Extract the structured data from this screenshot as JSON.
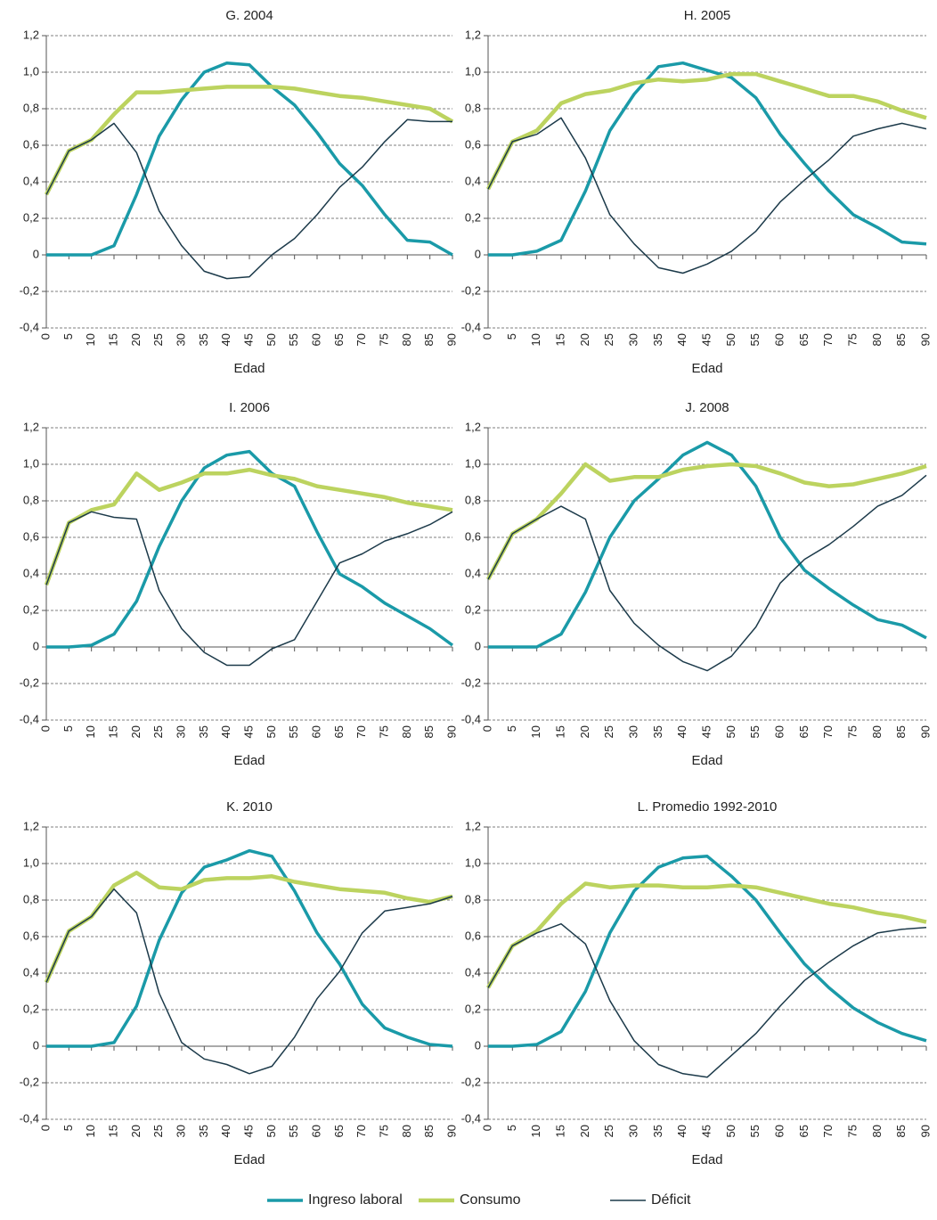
{
  "chart_data": [
    {
      "type": "line",
      "title": "G. 2004",
      "x_label": "Edad",
      "x": [
        0,
        5,
        10,
        15,
        20,
        25,
        30,
        35,
        40,
        45,
        50,
        55,
        60,
        65,
        70,
        75,
        80,
        85,
        90
      ],
      "xlim": [
        0,
        90
      ],
      "xticks": [
        0,
        5,
        10,
        15,
        20,
        25,
        30,
        35,
        40,
        45,
        50,
        55,
        60,
        65,
        70,
        75,
        80,
        85,
        90
      ],
      "ylim": [
        -0.4,
        1.2
      ],
      "yticks": [
        {
          "value": -0.4,
          "label": "-0,4"
        },
        {
          "value": -0.2,
          "label": "-0,2"
        },
        0,
        {
          "value": 0.2,
          "label": "0,2"
        },
        {
          "value": 0.4,
          "label": "0,4"
        },
        {
          "value": 0.6,
          "label": "0,6"
        },
        {
          "value": 0.8,
          "label": "0,8"
        },
        {
          "value": 1.0,
          "label": "1,0"
        },
        {
          "value": 1.2,
          "label": "1,2"
        }
      ],
      "grid": true,
      "series": [
        {
          "name": "Ingreso laboral",
          "color": "#1a9aa8",
          "values": [
            0,
            0,
            0,
            0.05,
            0.33,
            0.65,
            0.85,
            1.0,
            1.05,
            1.04,
            0.92,
            0.82,
            0.67,
            0.5,
            0.38,
            0.22,
            0.08,
            0.07,
            0
          ]
        },
        {
          "name": "Consumo",
          "color": "#bcd35f",
          "values": [
            0.33,
            0.57,
            0.63,
            0.77,
            0.89,
            0.89,
            0.9,
            0.91,
            0.92,
            0.92,
            0.92,
            0.91,
            0.89,
            0.87,
            0.86,
            0.84,
            0.82,
            0.8,
            0.73
          ]
        },
        {
          "name": "Déficit",
          "color": "#1c3a4a",
          "values": [
            0.33,
            0.57,
            0.63,
            0.72,
            0.56,
            0.24,
            0.05,
            -0.09,
            -0.13,
            -0.12,
            0,
            0.09,
            0.22,
            0.37,
            0.48,
            0.62,
            0.74,
            0.73,
            0.73
          ]
        }
      ]
    },
    {
      "type": "line",
      "title": "H. 2005",
      "x_label": "Edad",
      "x": [
        0,
        5,
        10,
        15,
        20,
        25,
        30,
        35,
        40,
        45,
        50,
        55,
        60,
        65,
        70,
        75,
        80,
        85,
        90
      ],
      "xlim": [
        0,
        90
      ],
      "xticks": [
        0,
        5,
        10,
        15,
        20,
        25,
        30,
        35,
        40,
        45,
        50,
        55,
        60,
        65,
        70,
        75,
        80,
        85,
        90
      ],
      "ylim": [
        -0.4,
        1.2
      ],
      "yticks": [
        {
          "value": -0.4,
          "label": "-0,4"
        },
        {
          "value": -0.2,
          "label": "-0,2"
        },
        0,
        {
          "value": 0.2,
          "label": "0,2"
        },
        {
          "value": 0.4,
          "label": "0,4"
        },
        {
          "value": 0.6,
          "label": "0,6"
        },
        {
          "value": 0.8,
          "label": "0,8"
        },
        {
          "value": 1.0,
          "label": "1,0"
        },
        {
          "value": 1.2,
          "label": "1,2"
        }
      ],
      "grid": true,
      "series": [
        {
          "color": "#1a9aa8",
          "values": [
            0,
            0,
            0.02,
            0.08,
            0.35,
            0.68,
            0.88,
            1.03,
            1.05,
            1.01,
            0.97,
            0.86,
            0.66,
            0.5,
            0.35,
            0.22,
            0.15,
            0.07,
            0.06
          ]
        },
        {
          "color": "#bcd35f",
          "values": [
            0.36,
            0.62,
            0.68,
            0.83,
            0.88,
            0.9,
            0.94,
            0.96,
            0.95,
            0.96,
            0.99,
            0.99,
            0.95,
            0.91,
            0.87,
            0.87,
            0.84,
            0.79,
            0.75
          ]
        },
        {
          "color": "#1c3a4a",
          "values": [
            0.36,
            0.62,
            0.66,
            0.75,
            0.53,
            0.22,
            0.06,
            -0.07,
            -0.1,
            -0.05,
            0.02,
            0.13,
            0.29,
            0.41,
            0.52,
            0.65,
            0.69,
            0.72,
            0.69
          ]
        }
      ]
    },
    {
      "type": "line",
      "title": "I. 2006",
      "x_label": "Edad",
      "x": [
        0,
        5,
        10,
        15,
        20,
        25,
        30,
        35,
        40,
        45,
        50,
        55,
        60,
        65,
        70,
        75,
        80,
        85,
        90
      ],
      "xlim": [
        0,
        90
      ],
      "xticks": [
        0,
        5,
        10,
        15,
        20,
        25,
        30,
        35,
        40,
        45,
        50,
        55,
        60,
        65,
        70,
        75,
        80,
        85,
        90
      ],
      "ylim": [
        -0.4,
        1.2
      ],
      "yticks": [
        {
          "value": -0.4,
          "label": "-0,4"
        },
        {
          "value": -0.2,
          "label": "-0,2"
        },
        0,
        {
          "value": 0.2,
          "label": "0,2"
        },
        {
          "value": 0.4,
          "label": "0,4"
        },
        {
          "value": 0.6,
          "label": "0,6"
        },
        {
          "value": 0.8,
          "label": "0,8"
        },
        {
          "value": 1.0,
          "label": "1,0"
        },
        {
          "value": 1.2,
          "label": "1,2"
        }
      ],
      "grid": true,
      "series": [
        {
          "color": "#1a9aa8",
          "values": [
            0,
            0,
            0.01,
            0.07,
            0.25,
            0.55,
            0.8,
            0.98,
            1.05,
            1.07,
            0.95,
            0.88,
            0.63,
            0.4,
            0.33,
            0.24,
            0.17,
            0.1,
            0.01
          ]
        },
        {
          "color": "#bcd35f",
          "values": [
            0.34,
            0.68,
            0.75,
            0.78,
            0.95,
            0.86,
            0.9,
            0.95,
            0.95,
            0.97,
            0.94,
            0.92,
            0.88,
            0.86,
            0.84,
            0.82,
            0.79,
            0.77,
            0.75
          ]
        },
        {
          "color": "#1c3a4a",
          "values": [
            0.34,
            0.68,
            0.74,
            0.71,
            0.7,
            0.31,
            0.1,
            -0.03,
            -0.1,
            -0.1,
            -0.01,
            0.04,
            0.25,
            0.46,
            0.51,
            0.58,
            0.62,
            0.67,
            0.74
          ]
        }
      ]
    },
    {
      "type": "line",
      "title": "J. 2008",
      "x_label": "Edad",
      "x": [
        0,
        5,
        10,
        15,
        20,
        25,
        30,
        35,
        40,
        45,
        50,
        55,
        60,
        65,
        70,
        75,
        80,
        85,
        90
      ],
      "xlim": [
        0,
        90
      ],
      "xticks": [
        0,
        5,
        10,
        15,
        20,
        25,
        30,
        35,
        40,
        45,
        50,
        55,
        60,
        65,
        70,
        75,
        80,
        85,
        90
      ],
      "ylim": [
        -0.4,
        1.2
      ],
      "yticks": [
        {
          "value": -0.4,
          "label": "-0,4"
        },
        {
          "value": -0.2,
          "label": "-0,2"
        },
        0,
        {
          "value": 0.2,
          "label": "0,2"
        },
        {
          "value": 0.4,
          "label": "0,4"
        },
        {
          "value": 0.6,
          "label": "0,6"
        },
        {
          "value": 0.8,
          "label": "0,8"
        },
        {
          "value": 1.0,
          "label": "1,0"
        },
        {
          "value": 1.2,
          "label": "1,2"
        }
      ],
      "grid": true,
      "series": [
        {
          "color": "#1a9aa8",
          "values": [
            0,
            0,
            0,
            0.07,
            0.3,
            0.6,
            0.8,
            0.92,
            1.05,
            1.12,
            1.05,
            0.88,
            0.6,
            0.42,
            0.32,
            0.23,
            0.15,
            0.12,
            0.05
          ]
        },
        {
          "color": "#bcd35f",
          "values": [
            0.37,
            0.62,
            0.7,
            0.84,
            1.0,
            0.91,
            0.93,
            0.93,
            0.97,
            0.99,
            1.0,
            0.99,
            0.95,
            0.9,
            0.88,
            0.89,
            0.92,
            0.95,
            0.99
          ]
        },
        {
          "color": "#1c3a4a",
          "values": [
            0.37,
            0.62,
            0.7,
            0.77,
            0.7,
            0.31,
            0.13,
            0.01,
            -0.08,
            -0.13,
            -0.05,
            0.11,
            0.35,
            0.48,
            0.56,
            0.66,
            0.77,
            0.83,
            0.94
          ]
        }
      ]
    },
    {
      "type": "line",
      "title": "K. 2010",
      "x_label": "Edad",
      "x": [
        0,
        5,
        10,
        15,
        20,
        25,
        30,
        35,
        40,
        45,
        50,
        55,
        60,
        65,
        70,
        75,
        80,
        85,
        90
      ],
      "xlim": [
        0,
        90
      ],
      "xticks": [
        0,
        5,
        10,
        15,
        20,
        25,
        30,
        35,
        40,
        45,
        50,
        55,
        60,
        65,
        70,
        75,
        80,
        85,
        90
      ],
      "ylim": [
        -0.4,
        1.2
      ],
      "yticks": [
        {
          "value": -0.4,
          "label": "-0,4"
        },
        {
          "value": -0.2,
          "label": "-0,2"
        },
        0,
        {
          "value": 0.2,
          "label": "0,2"
        },
        {
          "value": 0.4,
          "label": "0,4"
        },
        {
          "value": 0.6,
          "label": "0,6"
        },
        {
          "value": 0.8,
          "label": "0,8"
        },
        {
          "value": 1.0,
          "label": "1,0"
        },
        {
          "value": 1.2,
          "label": "1,2"
        }
      ],
      "grid": true,
      "series": [
        {
          "color": "#1a9aa8",
          "values": [
            0,
            0,
            0,
            0.02,
            0.22,
            0.58,
            0.84,
            0.98,
            1.02,
            1.07,
            1.04,
            0.85,
            0.62,
            0.45,
            0.23,
            0.1,
            0.05,
            0.01,
            0
          ]
        },
        {
          "color": "#bcd35f",
          "values": [
            0.35,
            0.63,
            0.71,
            0.88,
            0.95,
            0.87,
            0.86,
            0.91,
            0.92,
            0.92,
            0.93,
            0.9,
            0.88,
            0.86,
            0.85,
            0.84,
            0.81,
            0.79,
            0.82
          ]
        },
        {
          "color": "#1c3a4a",
          "values": [
            0.35,
            0.63,
            0.71,
            0.86,
            0.73,
            0.29,
            0.02,
            -0.07,
            -0.1,
            -0.15,
            -0.11,
            0.05,
            0.26,
            0.41,
            0.62,
            0.74,
            0.76,
            0.78,
            0.82
          ]
        }
      ]
    },
    {
      "type": "line",
      "title": "L. Promedio 1992-2010",
      "x_label": "Edad",
      "x": [
        0,
        5,
        10,
        15,
        20,
        25,
        30,
        35,
        40,
        45,
        50,
        55,
        60,
        65,
        70,
        75,
        80,
        85,
        90
      ],
      "xlim": [
        0,
        90
      ],
      "xticks": [
        0,
        5,
        10,
        15,
        20,
        25,
        30,
        35,
        40,
        45,
        50,
        55,
        60,
        65,
        70,
        75,
        80,
        85,
        90
      ],
      "ylim": [
        -0.4,
        1.2
      ],
      "yticks": [
        {
          "value": -0.4,
          "label": "-0,4"
        },
        {
          "value": -0.2,
          "label": "-0,2"
        },
        0,
        {
          "value": 0.2,
          "label": "0,2"
        },
        {
          "value": 0.4,
          "label": "0,4"
        },
        {
          "value": 0.6,
          "label": "0,6"
        },
        {
          "value": 0.8,
          "label": "0,8"
        },
        {
          "value": 1.0,
          "label": "1,0"
        },
        {
          "value": 1.2,
          "label": "1,2"
        }
      ],
      "grid": true,
      "series": [
        {
          "color": "#1a9aa8",
          "values": [
            0,
            0,
            0.01,
            0.08,
            0.3,
            0.62,
            0.85,
            0.98,
            1.03,
            1.04,
            0.93,
            0.8,
            0.62,
            0.45,
            0.32,
            0.21,
            0.13,
            0.07,
            0.03
          ]
        },
        {
          "color": "#bcd35f",
          "values": [
            0.32,
            0.55,
            0.63,
            0.78,
            0.89,
            0.87,
            0.88,
            0.88,
            0.87,
            0.87,
            0.88,
            0.87,
            0.84,
            0.81,
            0.78,
            0.76,
            0.73,
            0.71,
            0.68
          ]
        },
        {
          "color": "#1c3a4a",
          "values": [
            0.32,
            0.55,
            0.62,
            0.67,
            0.56,
            0.25,
            0.03,
            -0.1,
            -0.15,
            -0.17,
            -0.05,
            0.07,
            0.22,
            0.36,
            0.46,
            0.55,
            0.62,
            0.64,
            0.65
          ]
        }
      ]
    }
  ]
}
